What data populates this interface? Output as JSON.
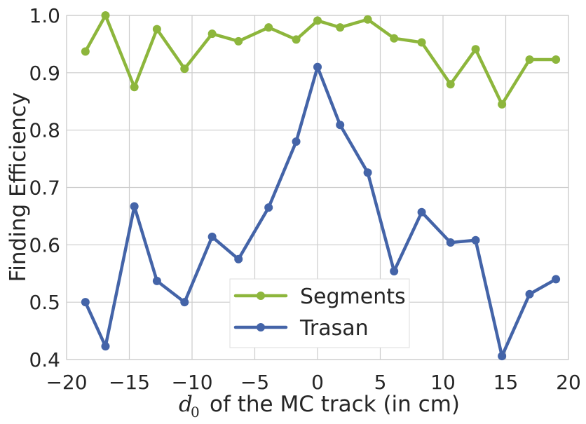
{
  "chart_data": {
    "type": "line",
    "title": "",
    "xlabel_symbol": "d",
    "xlabel_subscript": "0",
    "xlabel_text": "of the MC track (in cm)",
    "ylabel": "Finding Efficiency",
    "xlim": [
      -20,
      20
    ],
    "ylim": [
      0.4,
      1.0
    ],
    "grid": true,
    "legend_position": "lower-center",
    "x_ticks": [
      -20,
      -15,
      -10,
      -5,
      0,
      5,
      10,
      15,
      20
    ],
    "x_tick_labels": [
      "−20",
      "−15",
      "−10",
      "−5",
      "0",
      "5",
      "10",
      "15",
      "20"
    ],
    "y_ticks": [
      0.4,
      0.5,
      0.6,
      0.7,
      0.8,
      0.9,
      1.0
    ],
    "y_tick_labels": [
      "0.4",
      "0.5",
      "0.6",
      "0.7",
      "0.8",
      "0.9",
      "1.0"
    ],
    "x": [
      -18.5,
      -16.9,
      -14.6,
      -12.8,
      -10.6,
      -8.4,
      -6.3,
      -3.9,
      -1.7,
      0.0,
      1.8,
      4.0,
      6.1,
      8.3,
      10.6,
      12.6,
      14.7,
      16.9,
      19.0
    ],
    "series": [
      {
        "name": "Segments",
        "color": "#8db63c",
        "values": [
          0.937,
          1.0,
          0.875,
          0.976,
          0.907,
          0.968,
          0.955,
          0.979,
          0.958,
          0.991,
          0.979,
          0.993,
          0.96,
          0.953,
          0.88,
          0.941,
          0.845,
          0.923,
          0.923
        ]
      },
      {
        "name": "Trasan",
        "color": "#4464a8",
        "values": [
          0.5,
          0.423,
          0.667,
          0.537,
          0.5,
          0.614,
          0.575,
          0.665,
          0.78,
          0.91,
          0.809,
          0.726,
          0.554,
          0.657,
          0.604,
          0.608,
          0.406,
          0.514,
          0.54
        ]
      }
    ]
  }
}
